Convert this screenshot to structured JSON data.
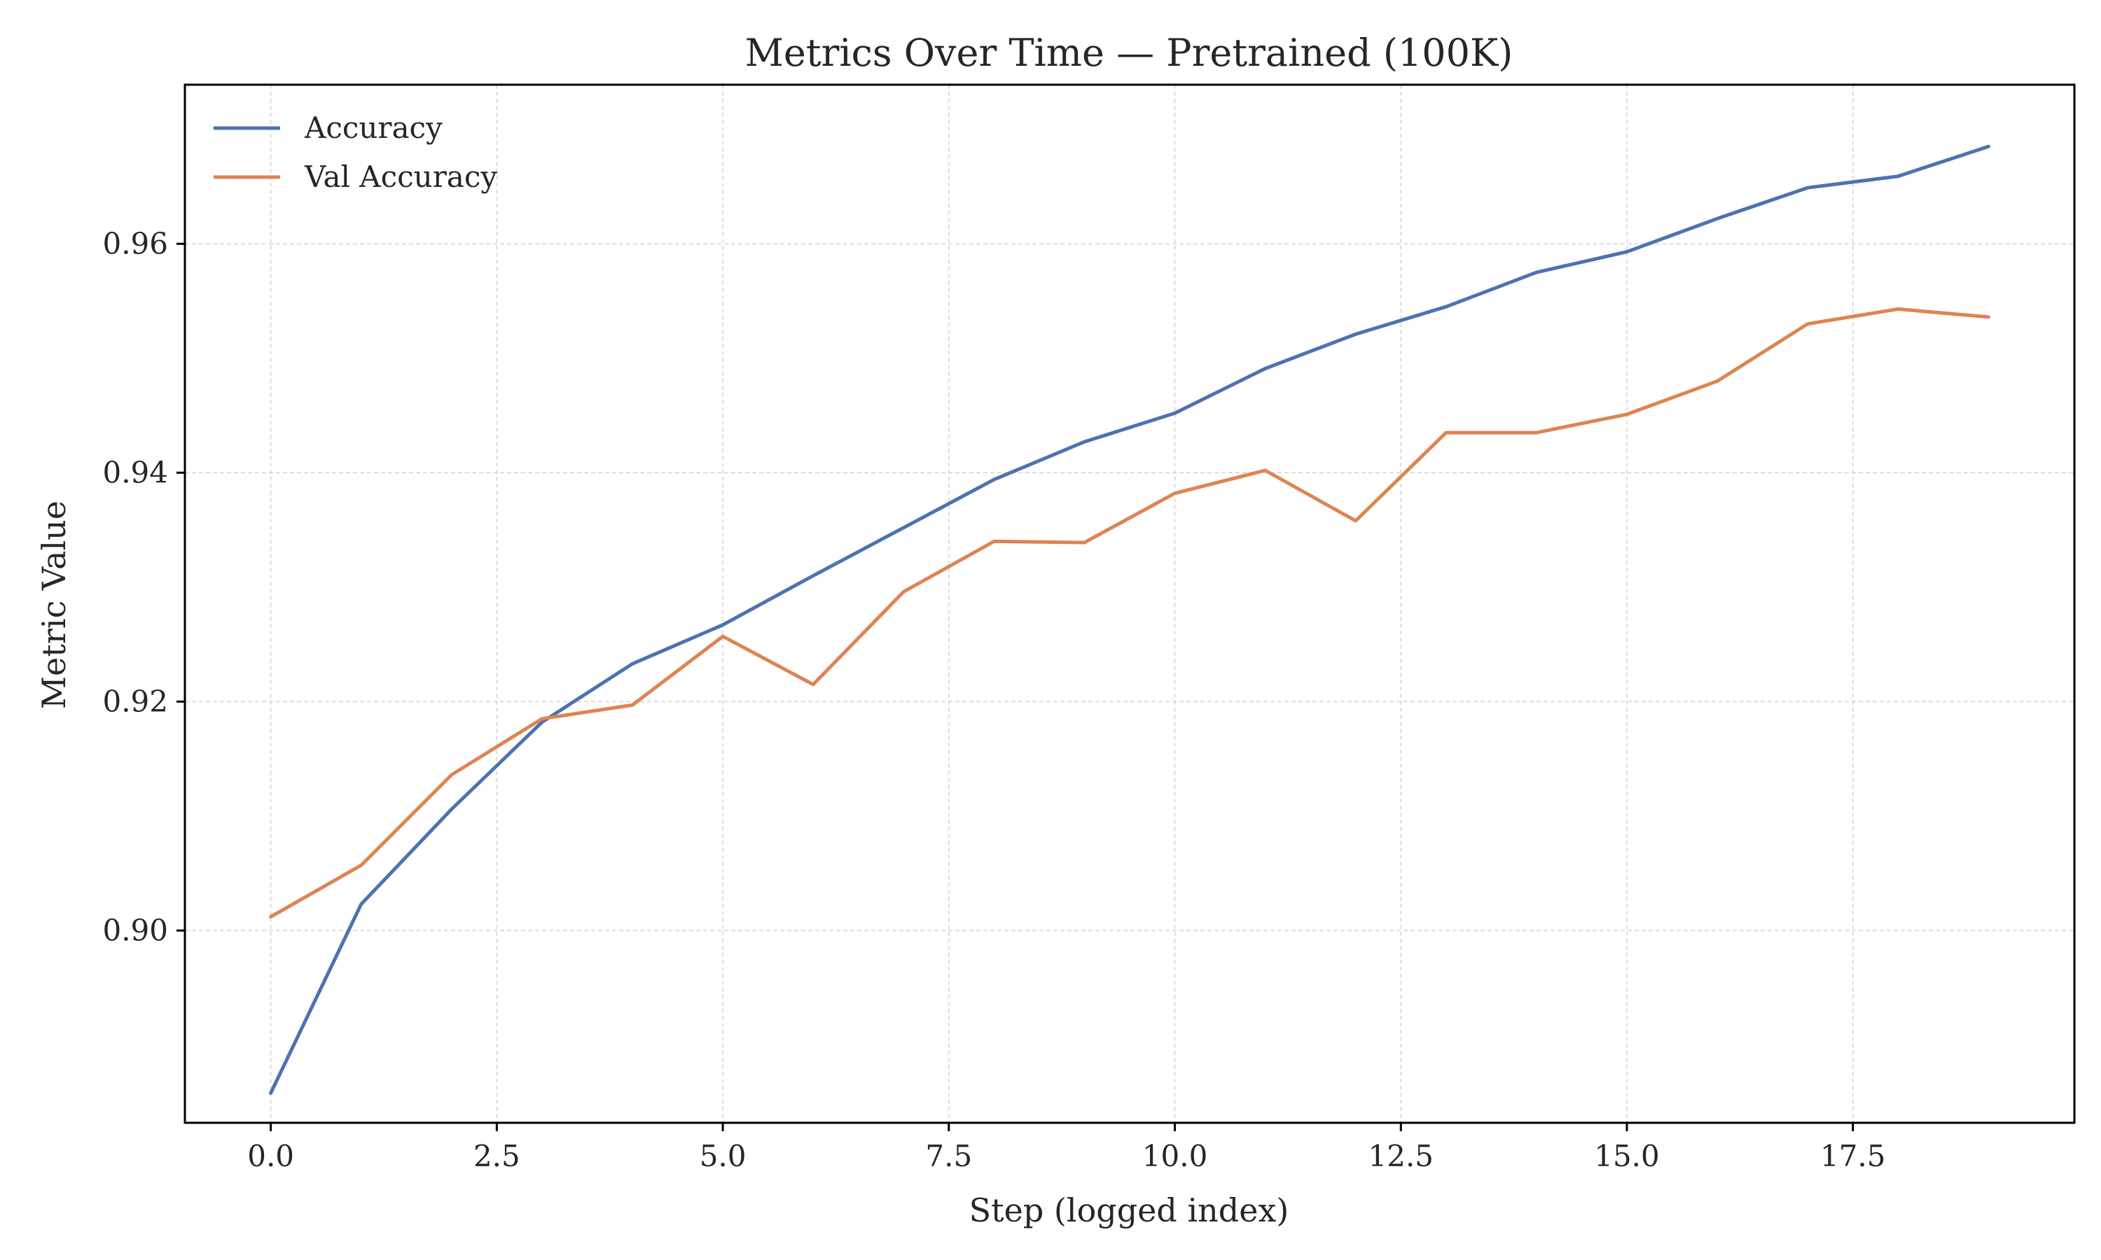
{
  "chart_data": {
    "type": "line",
    "title": "Metrics Over Time — Pretrained (100K)",
    "xlabel": "Step (logged index)",
    "ylabel": "Metric Value",
    "xlim": [
      -0.95,
      19.95
    ],
    "ylim": [
      0.8832,
      0.9739
    ],
    "xticks": [
      0.0,
      2.5,
      5.0,
      7.5,
      10.0,
      12.5,
      15.0,
      17.5
    ],
    "xtick_labels": [
      "0.0",
      "2.5",
      "5.0",
      "7.5",
      "10.0",
      "12.5",
      "15.0",
      "17.5"
    ],
    "yticks": [
      0.9,
      0.92,
      0.94,
      0.96
    ],
    "ytick_labels": [
      "0.90",
      "0.92",
      "0.94",
      "0.96"
    ],
    "grid": true,
    "legend_position": "top-left",
    "x": [
      0,
      1,
      2,
      3,
      4,
      5,
      6,
      7,
      8,
      9,
      10,
      11,
      12,
      13,
      14,
      15,
      16,
      17,
      18,
      19
    ],
    "series": [
      {
        "name": "Accuracy",
        "color": "#4c72b0",
        "values": [
          0.8858,
          0.9023,
          0.9106,
          0.9182,
          0.9233,
          0.9267,
          0.931,
          0.9352,
          0.9394,
          0.9427,
          0.9452,
          0.9491,
          0.9521,
          0.9545,
          0.9575,
          0.9593,
          0.9622,
          0.9649,
          0.9659,
          0.9685
        ]
      },
      {
        "name": "Val Accuracy",
        "color": "#dd8452",
        "values": [
          0.9012,
          0.9057,
          0.9136,
          0.9185,
          0.9197,
          0.9257,
          0.9215,
          0.9296,
          0.934,
          0.9339,
          0.9382,
          0.9402,
          0.9358,
          0.9435,
          0.9435,
          0.9451,
          0.948,
          0.953,
          0.9543,
          0.9536
        ]
      }
    ]
  }
}
